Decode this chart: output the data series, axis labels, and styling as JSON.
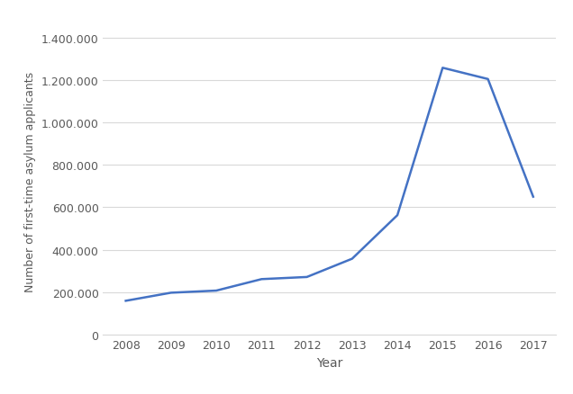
{
  "years": [
    2008,
    2009,
    2010,
    2011,
    2012,
    2013,
    2014,
    2015,
    2016,
    2017
  ],
  "values": [
    160000,
    198000,
    208000,
    262000,
    272000,
    358000,
    563000,
    1257000,
    1204000,
    650000
  ],
  "line_color": "#4472C4",
  "line_width": 1.8,
  "xlabel": "Year",
  "ylabel": "Number of first-time asylum applicants",
  "ylim": [
    0,
    1450000
  ],
  "yticks": [
    0,
    200000,
    400000,
    600000,
    800000,
    1000000,
    1200000,
    1400000
  ],
  "ytick_labels": [
    "0",
    "200.000",
    "400.000",
    "600.000",
    "800.000",
    "1.000.000",
    "1.200.000",
    "1.400.000"
  ],
  "xticks": [
    2008,
    2009,
    2010,
    2011,
    2012,
    2013,
    2014,
    2015,
    2016,
    2017
  ],
  "grid_color": "#d9d9d9",
  "tick_color": "#595959",
  "label_color": "#595959",
  "background_color": "#ffffff",
  "xlabel_fontsize": 10,
  "ylabel_fontsize": 9,
  "tick_fontsize": 9
}
